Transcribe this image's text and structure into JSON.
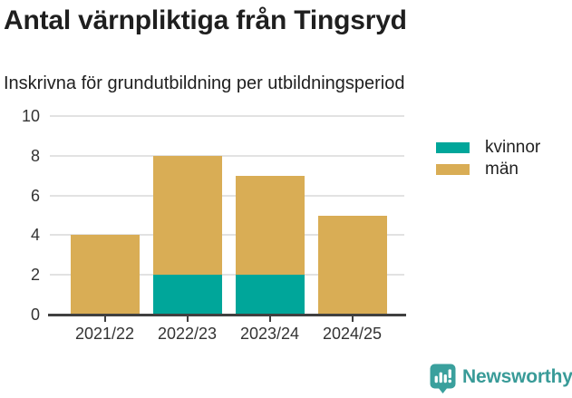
{
  "header": {
    "title": "Antal värnpliktiga från Tingsryd",
    "subtitle": "Inskrivna för grundutbildning per utbildningsperiod"
  },
  "chart_data": {
    "type": "bar",
    "stacked": true,
    "title": "Antal värnpliktiga från Tingsryd",
    "subtitle": "Inskrivna för grundutbildning per utbildningsperiod",
    "categories": [
      "2021/22",
      "2022/23",
      "2023/24",
      "2024/25"
    ],
    "series": [
      {
        "name": "kvinnor",
        "color": "#00A69A",
        "values": [
          0,
          2,
          2,
          0
        ]
      },
      {
        "name": "män",
        "color": "#D9AD55",
        "values": [
          4,
          6,
          5,
          5
        ]
      }
    ],
    "stack_totals": [
      4,
      8,
      7,
      5
    ],
    "xlabel": "",
    "ylabel": "",
    "ylim": [
      0,
      10
    ],
    "yticks": [
      0,
      2,
      4,
      6,
      8,
      10
    ],
    "grid": true,
    "legend_position": "right"
  },
  "footer": {
    "brand": "Newsworthy",
    "brand_color": "#399b98",
    "logo_icon": "newsworthy-speech-bubble-bar-chart-icon"
  },
  "colors": {
    "kvinnor": "#00A69A",
    "man": "#D9AD55",
    "grid": "#E2E2E2",
    "axis": "#404040",
    "heading_text": "#1F1F1F",
    "tick_label_text": "#333333"
  }
}
